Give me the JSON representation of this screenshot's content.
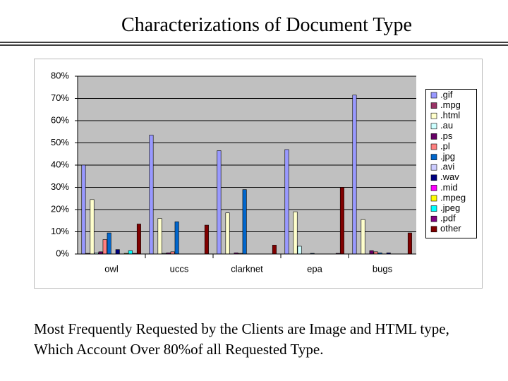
{
  "title": "Characterizations of Document Type",
  "caption": "Most Frequently Requested by the Clients are Image and HTML type, Which Account Over 80%of all Requested Type.",
  "chart_data": {
    "type": "bar",
    "categories": [
      "owl",
      "uccs",
      "clarknet",
      "epa",
      "bugs"
    ],
    "series": [
      {
        "name": ".gif",
        "color": "#9999ff",
        "values": [
          40,
          53.5,
          46.5,
          47,
          71.5
        ]
      },
      {
        "name": ".mpg",
        "color": "#993366",
        "values": [
          0.3,
          0,
          0,
          0,
          0
        ]
      },
      {
        "name": ".html",
        "color": "#ffffcc",
        "values": [
          24.5,
          16,
          18.5,
          19,
          15.5
        ]
      },
      {
        "name": ".au",
        "color": "#ccffff",
        "values": [
          0.5,
          0.3,
          0,
          3.5,
          0
        ]
      },
      {
        "name": ".ps",
        "color": "#660066",
        "values": [
          1,
          0.5,
          0.5,
          0,
          1.5
        ]
      },
      {
        "name": ".pl",
        "color": "#ff8080",
        "values": [
          6.5,
          1,
          0.3,
          0,
          1
        ]
      },
      {
        "name": ".jpg",
        "color": "#0066cc",
        "values": [
          9.5,
          14.5,
          29,
          0.3,
          0.5
        ]
      },
      {
        "name": ".avi",
        "color": "#ccccff",
        "values": [
          0,
          0,
          0,
          0,
          0
        ]
      },
      {
        "name": ".wav",
        "color": "#000080",
        "values": [
          2,
          0,
          0,
          0,
          0.5
        ]
      },
      {
        "name": ".mid",
        "color": "#ff00ff",
        "values": [
          0,
          0,
          0,
          0,
          0
        ]
      },
      {
        "name": ".mpeg",
        "color": "#ffff00",
        "values": [
          0.3,
          0,
          0,
          0,
          0
        ]
      },
      {
        "name": ".jpeg",
        "color": "#00ffff",
        "values": [
          1.5,
          0,
          0,
          0,
          0
        ]
      },
      {
        "name": ".pdf",
        "color": "#800080",
        "values": [
          0.3,
          0,
          0,
          0.3,
          0
        ]
      },
      {
        "name": "other",
        "color": "#800000",
        "values": [
          13.5,
          13,
          4,
          30,
          9.5
        ]
      }
    ],
    "ylim": [
      0,
      80
    ],
    "yticks": [
      {
        "value": 0,
        "label": "0%"
      },
      {
        "value": 10,
        "label": "10%"
      },
      {
        "value": 20,
        "label": "20%"
      },
      {
        "value": 30,
        "label": "30%"
      },
      {
        "value": 40,
        "label": "40%"
      },
      {
        "value": 50,
        "label": "50%"
      },
      {
        "value": 60,
        "label": "60%"
      },
      {
        "value": 70,
        "label": "70%"
      },
      {
        "value": 80,
        "label": "80%"
      }
    ],
    "grid": true,
    "legend": "right"
  }
}
